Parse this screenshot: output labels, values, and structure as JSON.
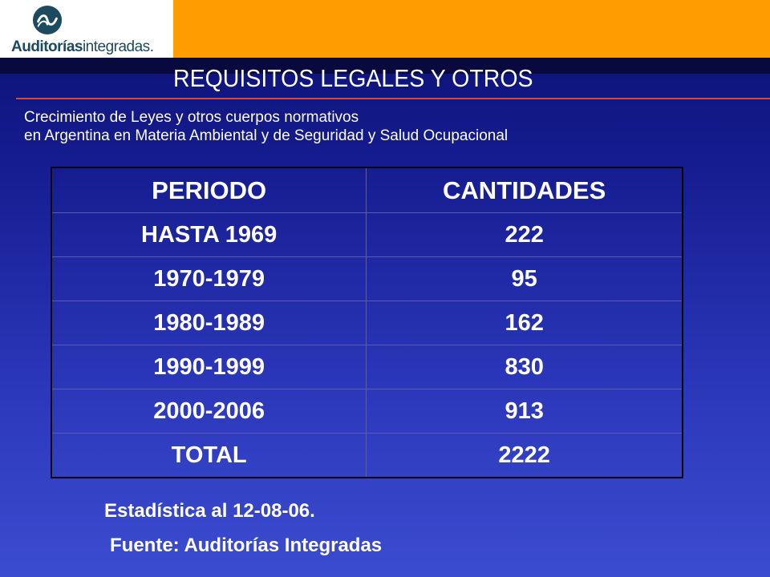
{
  "logo": {
    "brand_bold": "Auditorías",
    "brand_light": "integradas",
    "brand_dot": "."
  },
  "title": "REQUISITOS LEGALES Y OTROS",
  "subtitle": {
    "line1": "Crecimiento de Leyes y otros cuerpos normativos",
    "line2": "en Argentina en Materia Ambiental y de Seguridad y Salud Ocupacional"
  },
  "table": {
    "headers": [
      "PERIODO",
      "CANTIDADES"
    ],
    "rows": [
      [
        "HASTA 1969",
        "222"
      ],
      [
        "1970-1979",
        "95"
      ],
      [
        "1980-1989",
        "162"
      ],
      [
        "1990-1999",
        "830"
      ],
      [
        "2000-2006",
        "913"
      ],
      [
        "TOTAL",
        "2222"
      ]
    ]
  },
  "footer": {
    "stat": "Estadística al 12-08-06.",
    "source": "Fuente: Auditorías Integradas"
  },
  "colors": {
    "orange": "#ff9d00",
    "navy": "#151c8f",
    "accent_red": "#d44a3a",
    "logo_teal": "#1c4a5e"
  }
}
